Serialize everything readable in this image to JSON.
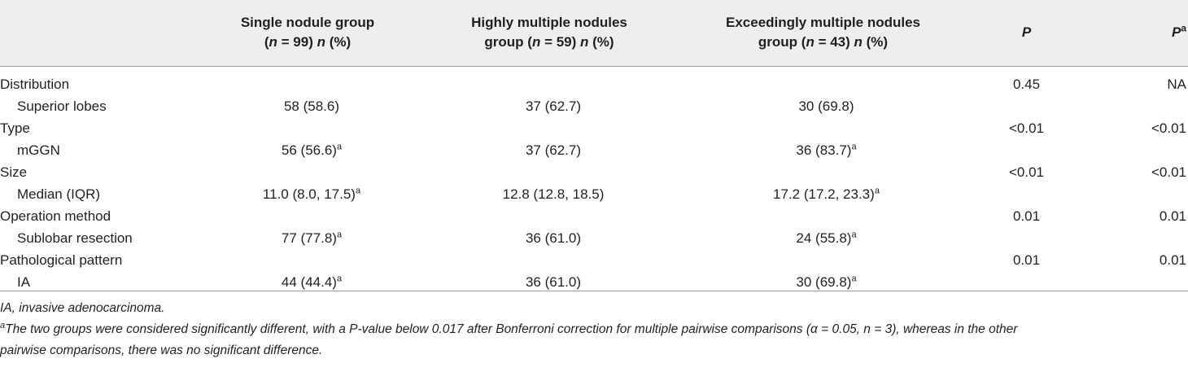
{
  "table": {
    "header": {
      "col1": {
        "line1": "Single nodule group",
        "n_pre": "(",
        "n_var": "n",
        "n_eq": " = 99) ",
        "pct_var": "n",
        "pct_tail": " (%)"
      },
      "col2": {
        "line1": "Highly multiple nodules",
        "pre": "group (",
        "n_var": "n",
        "n_eq": " = 59) ",
        "pct_var": "n",
        "pct_tail": " (%)"
      },
      "col3": {
        "line1": "Exceedingly multiple nodules",
        "pre": "group (",
        "n_var": "n",
        "n_eq": " = 43) ",
        "pct_var": "n",
        "pct_tail": " (%)"
      },
      "p": "P",
      "pa": "P",
      "pa_sup": "a"
    },
    "rows": [
      {
        "label": "Distribution",
        "sub": false,
        "c1": "",
        "c1_sup": "",
        "c2": "",
        "c3": "",
        "c3_sup": "",
        "p": "0.45",
        "pa": "NA"
      },
      {
        "label": "Superior lobes",
        "sub": true,
        "c1": "58 (58.6)",
        "c1_sup": "",
        "c2": "37 (62.7)",
        "c3": "30 (69.8)",
        "c3_sup": "",
        "p": "",
        "pa": ""
      },
      {
        "label": "Type",
        "sub": false,
        "c1": "",
        "c1_sup": "",
        "c2": "",
        "c3": "",
        "c3_sup": "",
        "p": "<0.01",
        "pa": "<0.01"
      },
      {
        "label": "mGGN",
        "sub": true,
        "c1": "56 (56.6)",
        "c1_sup": "a",
        "c2": "37 (62.7)",
        "c3": "36 (83.7)",
        "c3_sup": "a",
        "p": "",
        "pa": ""
      },
      {
        "label": "Size",
        "sub": false,
        "c1": "",
        "c1_sup": "",
        "c2": "",
        "c3": "",
        "c3_sup": "",
        "p": "<0.01",
        "pa": "<0.01"
      },
      {
        "label": "Median (IQR)",
        "sub": true,
        "c1": "11.0 (8.0, 17.5)",
        "c1_sup": "a",
        "c2": "12.8 (12.8, 18.5)",
        "c3": "17.2 (17.2, 23.3)",
        "c3_sup": "a",
        "p": "",
        "pa": ""
      },
      {
        "label": "Operation method",
        "sub": false,
        "c1": "",
        "c1_sup": "",
        "c2": "",
        "c3": "",
        "c3_sup": "",
        "p": "0.01",
        "pa": "0.01"
      },
      {
        "label": "Sublobar resection",
        "sub": true,
        "c1": "77 (77.8)",
        "c1_sup": "a",
        "c2": "36 (61.0)",
        "c3": "24 (55.8)",
        "c3_sup": "a",
        "p": "",
        "pa": ""
      },
      {
        "label": "Pathological pattern",
        "sub": false,
        "c1": "",
        "c1_sup": "",
        "c2": "",
        "c3": "",
        "c3_sup": "",
        "p": "0.01",
        "pa": "0.01"
      },
      {
        "label": "IA",
        "sub": true,
        "c1": "44 (44.4)",
        "c1_sup": "a",
        "c2": "36 (61.0)",
        "c3": "30 (69.8)",
        "c3_sup": "a",
        "p": "",
        "pa": ""
      }
    ]
  },
  "notes": {
    "abbrev": "IA, invasive adenocarcinoma.",
    "footnote_sup": "a",
    "footnote_line1": "The two groups were considered significantly different, with a P-value below 0.017 after Bonferroni correction for multiple pairwise comparisons (α = 0.05, n = 3), whereas in the other",
    "footnote_line2": "pairwise comparisons, there was no significant difference."
  }
}
